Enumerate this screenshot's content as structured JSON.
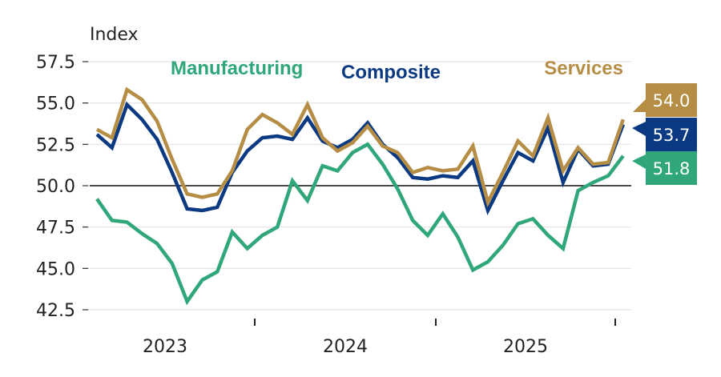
{
  "chart_data": {
    "type": "line",
    "title": "",
    "ylabel": "Index",
    "xlabel": "",
    "ylim": [
      42.5,
      57.5
    ],
    "yticks": [
      "57.5",
      "55.0",
      "52.5",
      "50.0",
      "47.5",
      "45.0",
      "42.5"
    ],
    "ytick_values": [
      57.5,
      55.0,
      52.5,
      50.0,
      47.5,
      45.0,
      42.5
    ],
    "reference_line": 50.0,
    "x_start": "2023-02",
    "x_frequency": "monthly",
    "xtick_labels": [
      "2023",
      "2024",
      "2025"
    ],
    "grid": true,
    "legend": "inline labels at top",
    "series": [
      {
        "name": "Manufacturing",
        "color": "#2fa77a",
        "end_label": "51.8",
        "values": [
          49.2,
          47.9,
          47.8,
          47.1,
          46.5,
          45.3,
          43.0,
          44.3,
          44.8,
          47.2,
          46.2,
          47.0,
          47.5,
          50.3,
          49.1,
          51.2,
          50.9,
          52.0,
          52.5,
          51.3,
          49.8,
          47.9,
          47.0,
          48.3,
          46.9,
          44.9,
          45.4,
          46.4,
          47.7,
          48.0,
          47.0,
          46.2,
          49.7,
          50.2,
          50.6,
          51.8
        ]
      },
      {
        "name": "Composite",
        "color": "#0b3a82",
        "end_label": "53.7",
        "values": [
          53.1,
          52.3,
          54.9,
          54.0,
          52.8,
          50.8,
          48.6,
          48.5,
          48.7,
          50.8,
          52.1,
          52.9,
          53.0,
          52.8,
          54.1,
          52.7,
          52.3,
          52.8,
          53.8,
          52.5,
          51.7,
          50.5,
          50.4,
          50.6,
          50.5,
          51.5,
          48.5,
          50.3,
          52.0,
          51.5,
          53.5,
          50.2,
          52.2,
          51.2,
          51.3,
          53.7
        ]
      },
      {
        "name": "Services",
        "color": "#b68d45",
        "end_label": "54.0",
        "values": [
          53.4,
          52.9,
          55.8,
          55.2,
          53.9,
          51.6,
          49.5,
          49.3,
          49.5,
          50.9,
          53.4,
          54.3,
          53.8,
          53.1,
          54.9,
          52.9,
          52.1,
          52.6,
          53.6,
          52.4,
          52.0,
          50.8,
          51.1,
          50.9,
          51.0,
          52.4,
          49.0,
          50.8,
          52.7,
          51.8,
          54.1,
          50.9,
          52.3,
          51.3,
          51.4,
          54.0
        ]
      }
    ]
  }
}
